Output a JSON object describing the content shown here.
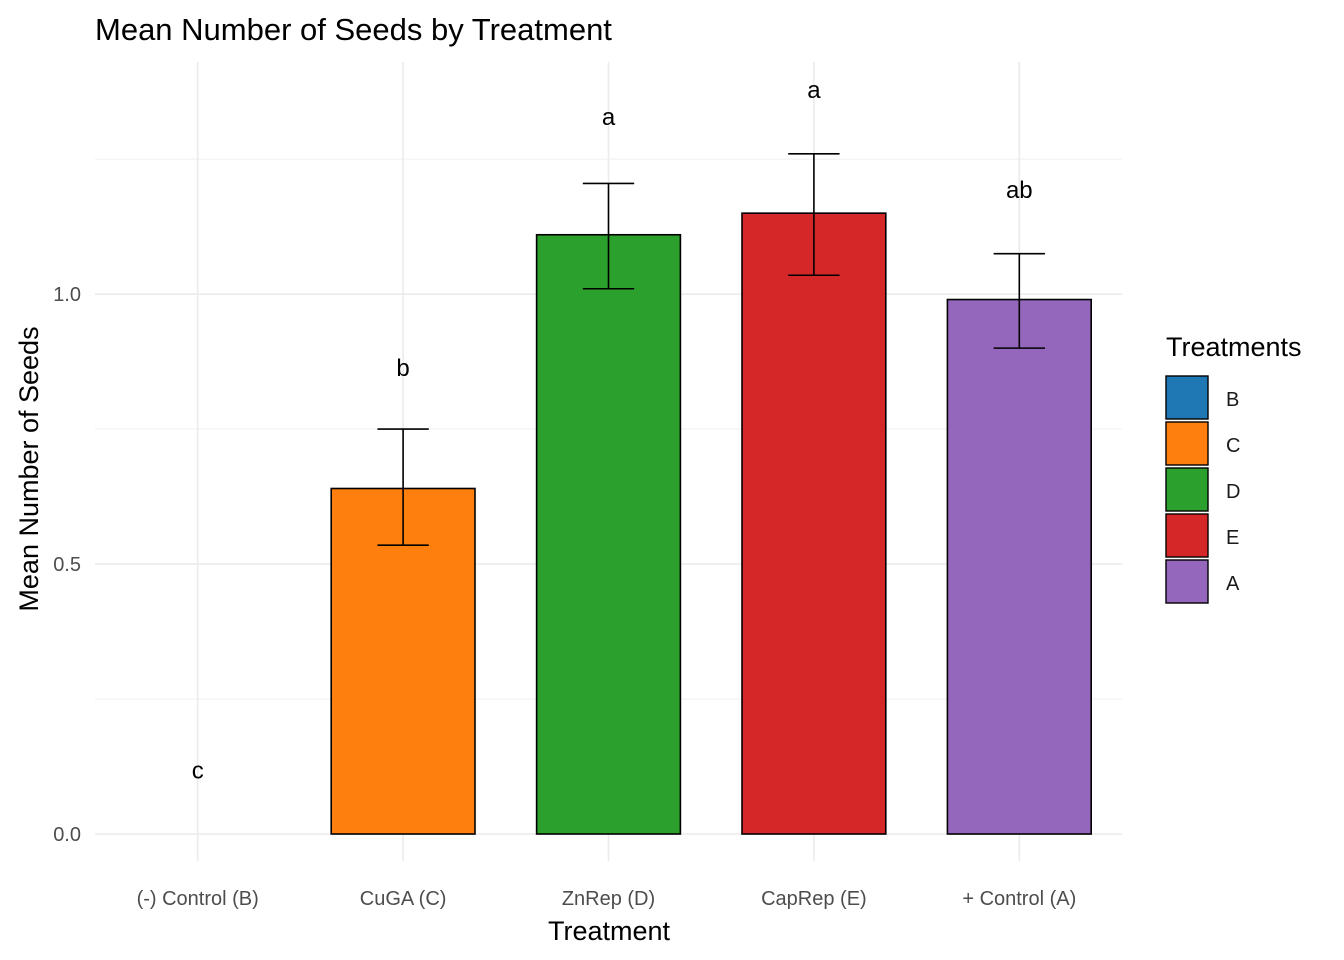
{
  "chart_data": {
    "type": "bar",
    "title": "Mean Number of Seeds by Treatment",
    "xlabel": "Treatment",
    "ylabel": "Mean Number of Seeds",
    "categories": [
      "(-) Control (B)",
      "CuGA (C)",
      "ZnRep (D)",
      "CapRep (E)",
      "+ Control (A)"
    ],
    "values": [
      0.0,
      0.64,
      1.11,
      1.15,
      0.99
    ],
    "error_low": [
      0.0,
      0.535,
      1.01,
      1.035,
      0.9
    ],
    "error_high": [
      0.0,
      0.75,
      1.205,
      1.26,
      1.075
    ],
    "significance_labels": [
      "c",
      "b",
      "a",
      "a",
      "ab"
    ],
    "significance_y": [
      0.115,
      0.86,
      1.325,
      1.375,
      1.19
    ],
    "ylim": [
      -0.05,
      1.43
    ],
    "yticks": [
      0.0,
      0.5,
      1.0
    ],
    "ytick_labels": [
      "0.0",
      "0.5",
      "1.0"
    ],
    "grid": true,
    "legend": {
      "title": "Treatments",
      "position": "right",
      "entries": [
        {
          "label": "B",
          "color": "#1f77b4"
        },
        {
          "label": "C",
          "color": "#ff7f0e"
        },
        {
          "label": "D",
          "color": "#2ca02c"
        },
        {
          "label": "E",
          "color": "#d62728"
        },
        {
          "label": "A",
          "color": "#9467bd"
        }
      ]
    },
    "bar_colors": [
      "#1f77b4",
      "#ff7f0e",
      "#2ca02c",
      "#d62728",
      "#9467bd"
    ]
  }
}
